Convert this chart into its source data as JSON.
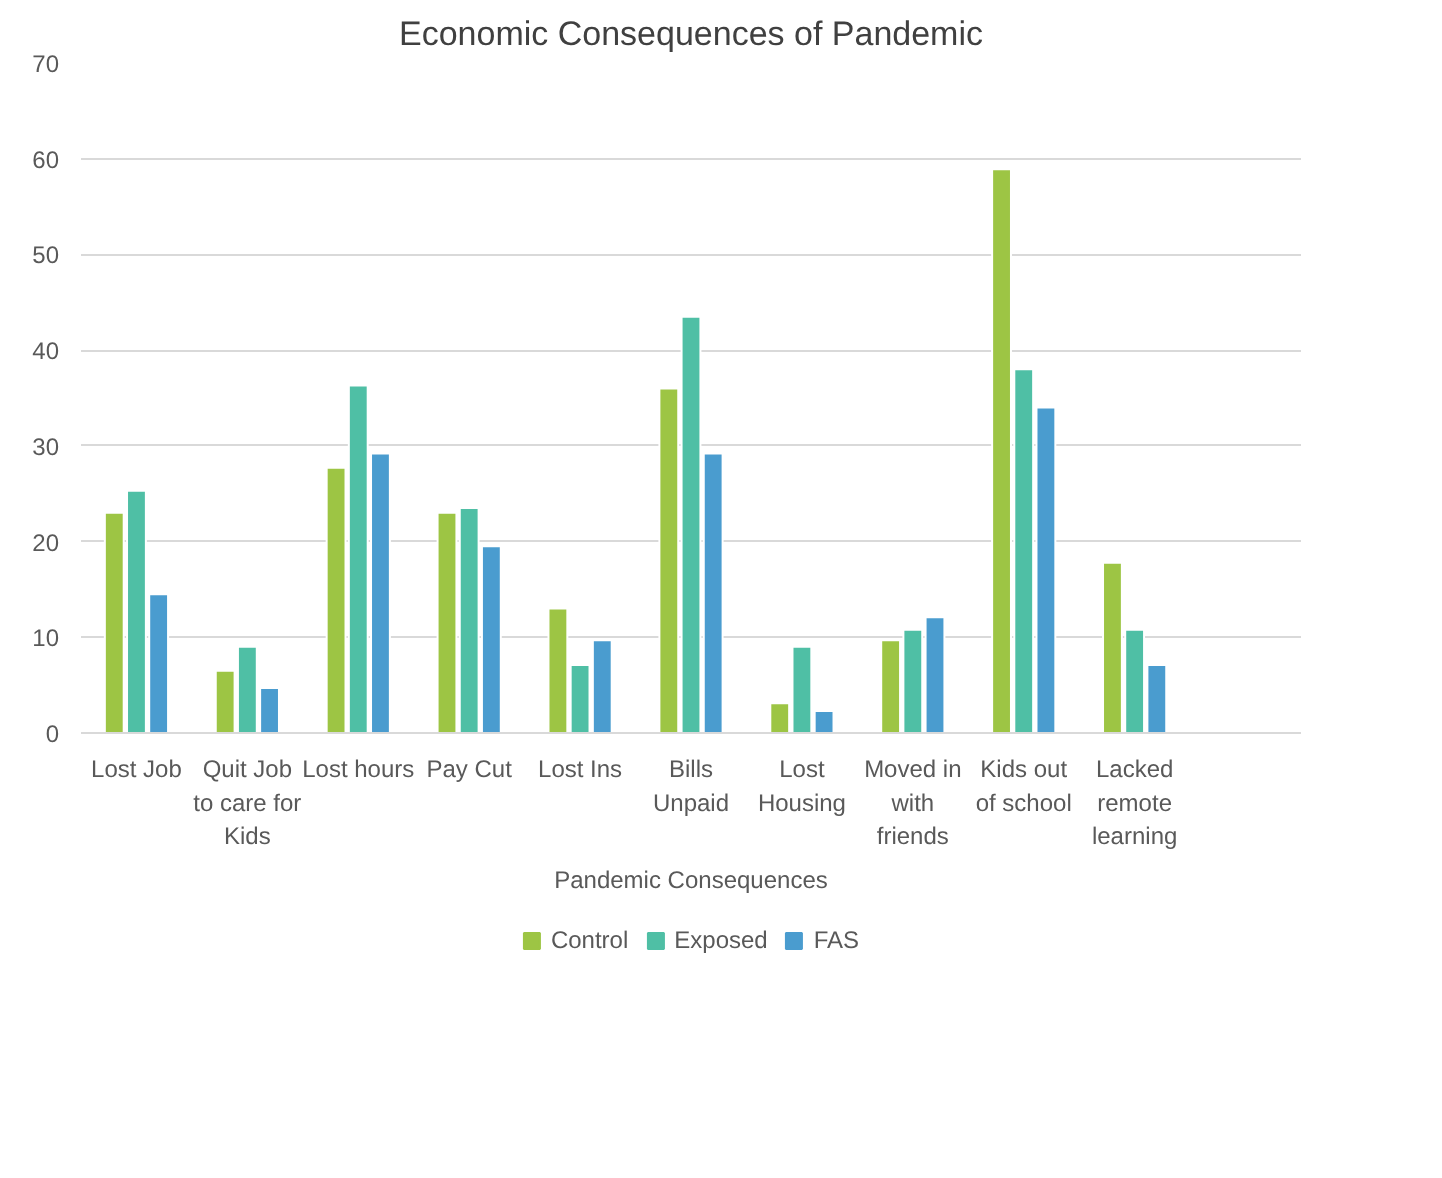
{
  "chart_data": {
    "type": "bar",
    "title": "Economic Consequences of Pandemic",
    "xlabel": "Pandemic Consequences",
    "categories": [
      "Lost Job",
      "Quit Job\nto care for\nKids",
      "Lost hours",
      "Pay Cut",
      "Lost Ins",
      "Bills\nUnpaid",
      "Lost\nHousing",
      "Moved in\nwith\nfriends",
      "Kids out\nof school",
      "Lacked\nremote\nlearning",
      null
    ],
    "series": [
      {
        "name": "Control",
        "color": "#9dc544",
        "values": [
          23.0,
          6.5,
          27.7,
          23.0,
          13.0,
          36.0,
          3.1,
          9.7,
          58.9,
          17.8,
          null
        ]
      },
      {
        "name": "Exposed",
        "color": "#4fbfa5",
        "values": [
          25.3,
          9.0,
          36.3,
          23.5,
          7.1,
          43.5,
          9.0,
          10.8,
          38.0,
          10.8,
          null
        ]
      },
      {
        "name": "FAS",
        "color": "#4a9ccf",
        "values": [
          14.5,
          4.7,
          29.2,
          19.5,
          9.7,
          29.2,
          2.3,
          12.1,
          34.0,
          7.1,
          null
        ]
      }
    ],
    "ylim": [
      0,
      70
    ],
    "yticks": [
      0,
      10,
      20,
      30,
      40,
      50,
      60,
      70
    ],
    "grid": "y",
    "legend": "bottom"
  }
}
